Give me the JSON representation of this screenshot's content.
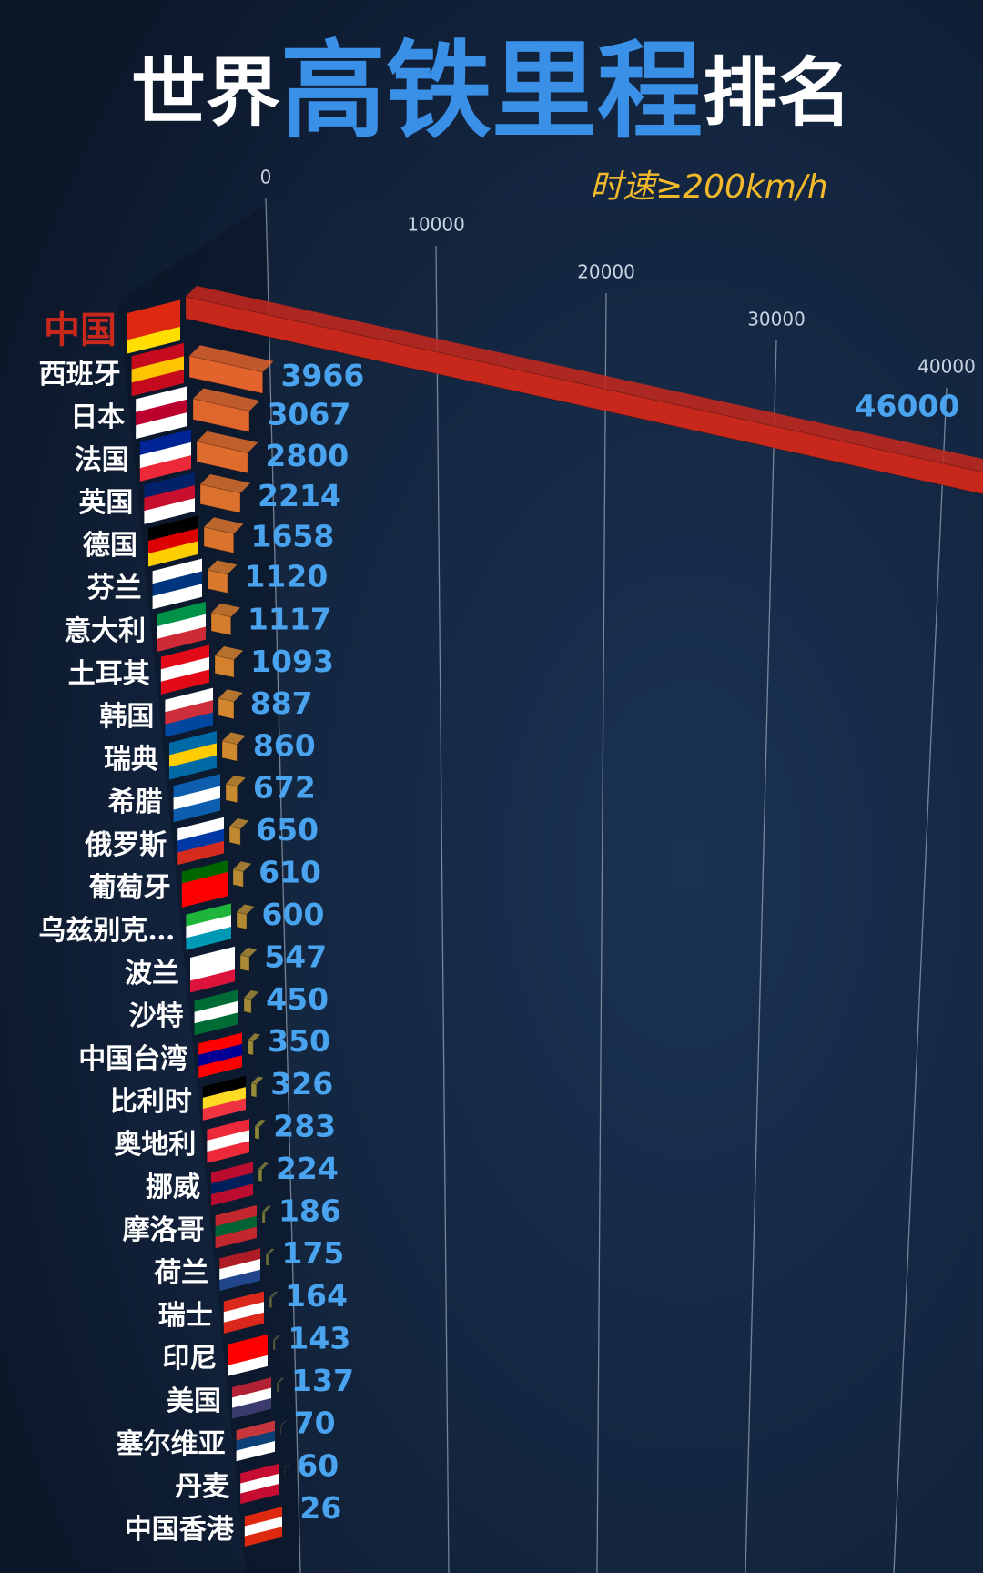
{
  "chart_data": {
    "type": "bar3d",
    "title_parts": [
      "世界",
      "高铁里程",
      "排名"
    ],
    "subtitle": "时速≥200km/h",
    "categories": [
      "中国",
      "西班牙",
      "日本",
      "法国",
      "英国",
      "德国",
      "芬兰",
      "意大利",
      "土耳其",
      "韩国",
      "瑞典",
      "希腊",
      "俄罗斯",
      "葡萄牙",
      "乌兹别克…",
      "波兰",
      "沙特",
      "中国台湾",
      "比利时",
      "奥地利",
      "挪威",
      "摩洛哥",
      "荷兰",
      "瑞士",
      "印尼",
      "美国",
      "塞尔维亚",
      "丹麦",
      "中国香港"
    ],
    "values": [
      46000,
      3966,
      3067,
      2800,
      2214,
      1658,
      1120,
      1117,
      1093,
      887,
      860,
      672,
      650,
      610,
      600,
      547,
      450,
      350,
      326,
      283,
      224,
      186,
      175,
      164,
      143,
      137,
      70,
      60,
      26
    ],
    "highlight_color": "#c8281c",
    "colors": [
      "#e2632c",
      "#d08a2e",
      "#8c8a3a",
      "#2e3648"
    ],
    "label_color": "#4aa3ef",
    "xlim": [
      0,
      40000
    ],
    "xticks": [
      0,
      10000,
      20000,
      30000,
      40000
    ],
    "grid": true
  }
}
